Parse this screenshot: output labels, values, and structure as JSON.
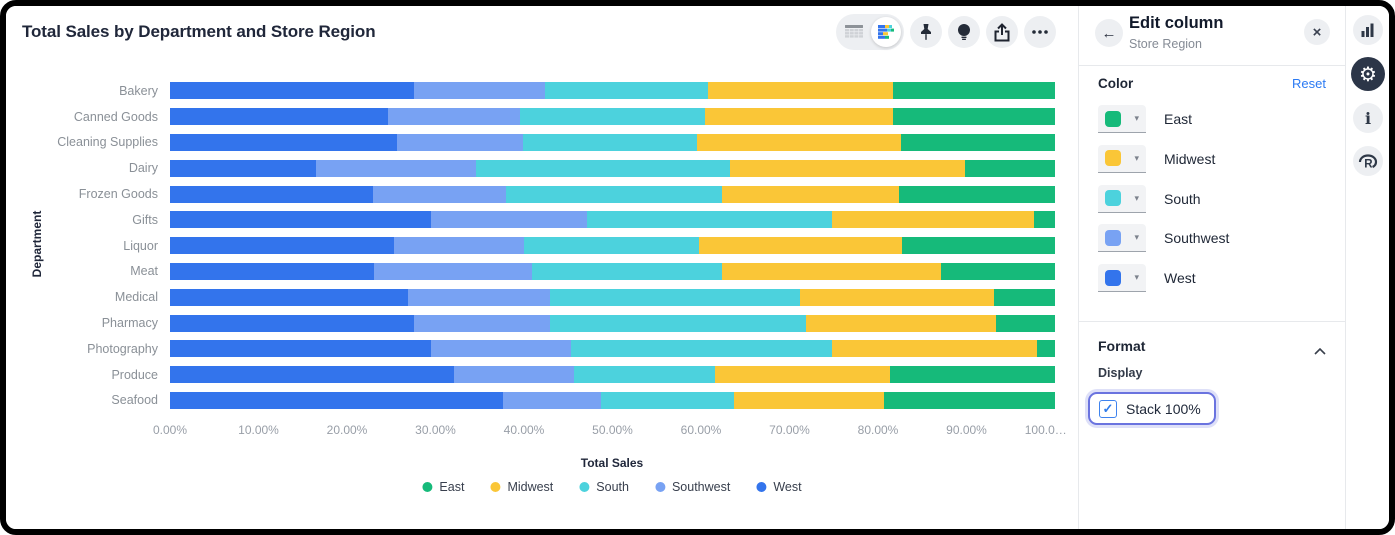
{
  "chart_data": {
    "type": "bar",
    "orientation": "horizontal",
    "stacked": "100%",
    "title": "Total Sales by Department and Store Region",
    "xlabel": "Total Sales",
    "ylabel": "Department",
    "xlim": [
      0,
      100
    ],
    "grid": false,
    "legend_position": "bottom",
    "x_ticks": [
      "0.00%",
      "10.00%",
      "20.00%",
      "30.00%",
      "40.00%",
      "50.00%",
      "60.00%",
      "70.00%",
      "80.00%",
      "90.00%",
      "100.0…"
    ],
    "categories": [
      "Bakery",
      "Canned Goods",
      "Cleaning Supplies",
      "Dairy",
      "Frozen Goods",
      "Gifts",
      "Liquor",
      "Meat",
      "Medical",
      "Pharmacy",
      "Photography",
      "Produce",
      "Seafood"
    ],
    "series": [
      {
        "name": "West",
        "color": "#3374EC",
        "values": [
          27.6,
          24.6,
          25.6,
          16.5,
          22.9,
          29.5,
          25.3,
          23.0,
          26.9,
          27.6,
          29.5,
          32.1,
          37.6
        ]
      },
      {
        "name": "Southwest",
        "color": "#78A2F3",
        "values": [
          14.8,
          15.0,
          14.3,
          18.1,
          15.1,
          17.6,
          14.7,
          17.9,
          16.0,
          15.3,
          15.8,
          13.6,
          11.1
        ]
      },
      {
        "name": "South",
        "color": "#4CD2DD",
        "values": [
          18.4,
          20.9,
          19.6,
          28.7,
          24.4,
          27.7,
          19.8,
          21.5,
          28.3,
          29.0,
          29.5,
          15.9,
          15.0
        ]
      },
      {
        "name": "Midwest",
        "color": "#FAC637",
        "values": [
          20.9,
          21.2,
          23.1,
          26.5,
          20.0,
          22.8,
          22.9,
          24.7,
          21.9,
          21.4,
          23.2,
          19.8,
          17.0
        ]
      },
      {
        "name": "East",
        "color": "#16BA7A",
        "values": [
          18.3,
          18.3,
          17.4,
          10.2,
          17.6,
          2.4,
          17.3,
          12.9,
          6.9,
          6.7,
          2.0,
          18.6,
          19.3
        ]
      }
    ],
    "legend": [
      "East",
      "Midwest",
      "South",
      "Southwest",
      "West"
    ]
  },
  "toolbar": {
    "view_toggle": {
      "options": [
        "table-view-icon",
        "chart-view-icon"
      ],
      "active": "chart-view-icon"
    },
    "buttons": [
      "pin-icon",
      "insights-bulb-icon",
      "share-icon",
      "more-ellipsis-icon"
    ]
  },
  "edit_panel": {
    "back_icon": "arrow-left-icon",
    "back_glyph": "←",
    "title": "Edit column",
    "subtitle": "Store Region",
    "close_icon": "close-icon",
    "close_glyph": "×",
    "color_section": {
      "heading": "Color",
      "reset_label": "Reset",
      "items": [
        "East",
        "Midwest",
        "South",
        "Southwest",
        "West"
      ],
      "caret_glyph": "▾"
    },
    "format_section": {
      "heading": "Format",
      "collapse_icon": "chevron-up-icon",
      "display_label": "Display",
      "stack_checkbox": {
        "label": "Stack 100%",
        "checked": true,
        "check_glyph": "✓"
      }
    }
  },
  "rail": {
    "icons": [
      "chart-panel-icon",
      "settings-gear-icon",
      "info-icon",
      "r-language-icon"
    ],
    "active": "settings-gear-icon",
    "gear_glyph": "⚙",
    "info_glyph": "i"
  }
}
